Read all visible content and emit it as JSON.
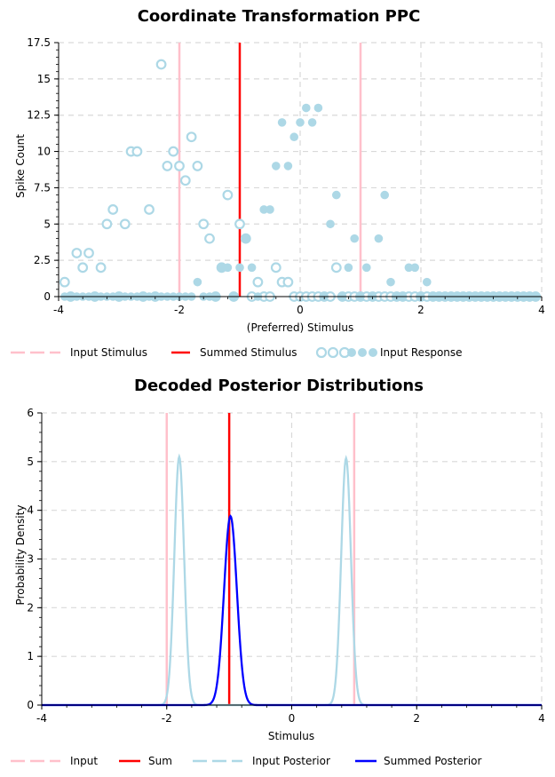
{
  "chart_data": [
    {
      "type": "scatter",
      "title": "Coordinate Transformation PPC",
      "xlabel": "(Preferred) Stimulus",
      "ylabel": "Spike Count",
      "xlim": [
        -4,
        4
      ],
      "ylim": [
        0,
        17.5
      ],
      "xticks": [
        "-4",
        "-2",
        "0",
        "2",
        "4"
      ],
      "xtick_values": [
        -4,
        -2,
        0,
        2,
        4
      ],
      "yticks": [
        "0",
        "2.5",
        "5",
        "7.5",
        "10",
        "12.5",
        "15",
        "17.5"
      ],
      "ytick_values": [
        0,
        2.5,
        5,
        7.5,
        10,
        12.5,
        15,
        17.5
      ],
      "grid": true,
      "vlines": [
        {
          "name": "Input Stimulus",
          "x": -2,
          "color": "#ffc0cb"
        },
        {
          "name": "Summed Stimulus",
          "x": -1,
          "color": "#ff0000"
        },
        {
          "name": "Input Stimulus",
          "x": 1,
          "color": "#ffc0cb"
        }
      ],
      "series": [
        {
          "name": "Input Response (hollow)",
          "marker": "hollow",
          "color": "#add8e6",
          "x": [
            -3.9,
            -3.8,
            -3.7,
            -3.6,
            -3.5,
            -3.4,
            -3.3,
            -3.2,
            -3.1,
            -3.0,
            -2.9,
            -2.8,
            -2.7,
            -2.6,
            -2.5,
            -2.4,
            -2.3,
            -2.2,
            -2.1,
            -2.0,
            -1.9,
            -1.8,
            -1.7,
            -1.6,
            -1.5,
            -1.4,
            -1.3,
            -1.2,
            -1.1,
            -1.0,
            -0.9,
            -0.8,
            -0.7,
            -0.6,
            -0.5,
            -0.4,
            -0.3,
            -0.2,
            -0.1,
            0.0,
            0.1,
            0.2,
            0.3,
            0.4,
            0.5,
            0.6,
            0.7,
            0.8,
            0.9,
            1.0,
            1.1,
            1.2,
            1.3,
            1.4,
            1.5,
            1.6,
            1.7,
            1.8,
            1.9,
            2.0,
            2.1,
            2.2,
            2.3,
            2.4,
            2.5,
            2.6,
            2.7,
            2.8,
            2.9,
            3.0,
            3.1,
            3.2,
            3.3,
            3.4,
            3.5,
            3.6,
            3.7,
            3.8,
            3.9
          ],
          "y": [
            1,
            0,
            3,
            2,
            3,
            0,
            2,
            5,
            6,
            0,
            5,
            10,
            10,
            0,
            6,
            0,
            16,
            9,
            10,
            9,
            8,
            11,
            9,
            5,
            4,
            0,
            2,
            7,
            0,
            5,
            4,
            0,
            1,
            0,
            0,
            2,
            1,
            1,
            0,
            0,
            0,
            0,
            0,
            0,
            0,
            2,
            0,
            0,
            0,
            0,
            0,
            0,
            0,
            0,
            0,
            0,
            0,
            0,
            0,
            0,
            0,
            0,
            0,
            0,
            0,
            0,
            0,
            0,
            0,
            0,
            0,
            0,
            0,
            0,
            0,
            0,
            0,
            0,
            0
          ]
        },
        {
          "name": "Input Response (filled)",
          "marker": "filled",
          "color": "#add8e6",
          "x": [
            -3.9,
            -3.8,
            -3.7,
            -3.6,
            -3.5,
            -3.4,
            -3.3,
            -3.2,
            -3.1,
            -3.0,
            -2.9,
            -2.8,
            -2.7,
            -2.6,
            -2.5,
            -2.4,
            -2.3,
            -2.2,
            -2.1,
            -2.0,
            -1.9,
            -1.8,
            -1.7,
            -1.6,
            -1.5,
            -1.4,
            -1.3,
            -1.2,
            -1.1,
            -1.0,
            -0.9,
            -0.8,
            -0.7,
            -0.6,
            -0.5,
            -0.4,
            -0.3,
            -0.2,
            -0.1,
            0.0,
            0.1,
            0.2,
            0.3,
            0.4,
            0.5,
            0.6,
            0.7,
            0.8,
            0.9,
            1.0,
            1.1,
            1.2,
            1.3,
            1.4,
            1.5,
            1.6,
            1.7,
            1.8,
            1.9,
            2.0,
            2.1,
            2.2,
            2.3,
            2.4,
            2.5,
            2.6,
            2.7,
            2.8,
            2.9,
            3.0,
            3.1,
            3.2,
            3.3,
            3.4,
            3.5,
            3.6,
            3.7,
            3.8,
            3.9
          ],
          "y": [
            0,
            0,
            0,
            0,
            0,
            0,
            0,
            0,
            0,
            0,
            0,
            0,
            0,
            0,
            0,
            0,
            0,
            0,
            0,
            0,
            0,
            0,
            1,
            0,
            0,
            0,
            2,
            2,
            0,
            2,
            4,
            2,
            0,
            6,
            6,
            9,
            12,
            9,
            11,
            12,
            13,
            12,
            13,
            0,
            5,
            7,
            0,
            2,
            4,
            0,
            2,
            0,
            4,
            7,
            1,
            0,
            0,
            2,
            2,
            0,
            1,
            0,
            0,
            0,
            0,
            0,
            0,
            0,
            0,
            0,
            0,
            0,
            0,
            0,
            0,
            0,
            0,
            0,
            0
          ]
        }
      ],
      "legend": [
        "Input Stimulus",
        "Summed Stimulus",
        "Input Response"
      ],
      "legend_location": "bottom"
    },
    {
      "type": "line",
      "title": "Decoded Posterior Distributions",
      "xlabel": "Stimulus",
      "ylabel": "Probability Density",
      "xlim": [
        -4,
        4
      ],
      "ylim": [
        0,
        6
      ],
      "xticks": [
        "-4",
        "-2",
        "0",
        "2",
        "4"
      ],
      "xtick_values": [
        -4,
        -2,
        0,
        2,
        4
      ],
      "yticks": [
        "0",
        "1",
        "2",
        "3",
        "4",
        "5",
        "6"
      ],
      "ytick_values": [
        0,
        1,
        2,
        3,
        4,
        5,
        6
      ],
      "grid": true,
      "vlines": [
        {
          "name": "Input",
          "x": -2,
          "color": "#ffc0cb"
        },
        {
          "name": "Sum",
          "x": -1,
          "color": "#ff0000"
        },
        {
          "name": "Input",
          "x": 1,
          "color": "#ffc0cb"
        }
      ],
      "series": [
        {
          "name": "Input Posterior",
          "color": "#add8e6",
          "shape": "gaussian",
          "mean": -1.8,
          "sd": 0.078,
          "peak": 5.1
        },
        {
          "name": "Input Posterior",
          "color": "#add8e6",
          "shape": "gaussian",
          "mean": 0.87,
          "sd": 0.078,
          "peak": 5.07
        },
        {
          "name": "Summed Posterior",
          "color": "#0000ff",
          "shape": "gaussian",
          "mean": -0.98,
          "sd": 0.103,
          "peak": 3.88
        }
      ],
      "legend": [
        "Input",
        "Sum",
        "Input Posterior",
        "Summed Posterior"
      ],
      "legend_location": "bottom"
    }
  ]
}
